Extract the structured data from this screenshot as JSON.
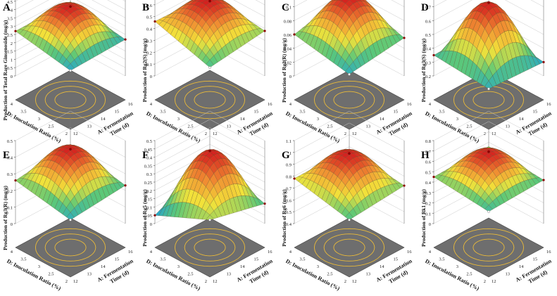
{
  "figure": {
    "background": "#ffffff"
  },
  "axis_text": {
    "d_axis": "D: Inoculation Ratio (%)",
    "a_axis_line1": "A: Fermentation",
    "a_axis_line2": "Time (d)",
    "d_ticks": [
      "2",
      "2.5",
      "3",
      "3.5",
      "4"
    ],
    "a_ticks": [
      "12",
      "13",
      "14",
      "15",
      "16"
    ]
  },
  "colors": {
    "surface_low": "#1fa2d6",
    "surface_mid": "#f2e23a",
    "surface_high": "#d41f1f",
    "floor": "#6e6e6e",
    "contour": "#e8b93a",
    "point": "#8b0000"
  },
  "chart_data": [
    {
      "type": "surface",
      "panel_label": "A",
      "zlabel": "Production of Total Rare Ginsenoside (mg/g)",
      "x": {
        "label": "D: Inoculation Ratio (%)",
        "range": [
          2,
          4
        ],
        "ticks": [
          "2",
          "2.5",
          "3",
          "3.5",
          "4"
        ]
      },
      "y": {
        "label": "A: Fermentation Time (d)",
        "range": [
          12,
          16
        ],
        "ticks": [
          "12",
          "13",
          "14",
          "15",
          "16"
        ]
      },
      "zlim": [
        0,
        5
      ],
      "zticks": [
        "0",
        "0.5",
        "1",
        "1.5",
        "2",
        "2.5",
        "3",
        "3.5",
        "4",
        "4.5",
        "5"
      ],
      "peak": 4.1,
      "corners": [
        2.1,
        2.7,
        2.7,
        2.2
      ],
      "colorscale": [
        2.0,
        4.1
      ]
    },
    {
      "type": "surface",
      "panel_label": "B",
      "zlabel": "Production of Rg2(S) (mg/g)",
      "x": {
        "label": "D: Inoculation Ratio (%)",
        "range": [
          2,
          4
        ],
        "ticks": [
          "2",
          "2.5",
          "3",
          "3.5",
          "4"
        ]
      },
      "y": {
        "label": "A: Fermentation Time (d)",
        "range": [
          12,
          16
        ],
        "ticks": [
          "12",
          "13",
          "14",
          "15",
          "16"
        ]
      },
      "zlim": [
        0,
        0.7
      ],
      "zticks": [
        "0",
        "0.1",
        "0.2",
        "0.3",
        "0.4",
        "0.5",
        "0.6",
        "0.7"
      ],
      "peak": 0.62,
      "corners": [
        0.32,
        0.46,
        0.44,
        0.38
      ],
      "colorscale": [
        0.25,
        0.62
      ]
    },
    {
      "type": "surface",
      "panel_label": "C",
      "zlabel": "Production of Rg2(R) (mg/g)",
      "x": {
        "label": "D: Inoculation Ratio (%)",
        "range": [
          2,
          4
        ],
        "ticks": [
          "2",
          "2.5",
          "3",
          "3.5",
          "4"
        ]
      },
      "y": {
        "label": "A: Fermentation Time (d)",
        "range": [
          12,
          16
        ],
        "ticks": [
          "12",
          "13",
          "14",
          "15",
          "16"
        ]
      },
      "zlim": [
        0,
        0.12
      ],
      "zticks": [
        "0",
        "0.02",
        "0.04",
        "0.06",
        "0.08",
        "0.1",
        "0.12"
      ],
      "peak": 0.11,
      "corners": [
        0.045,
        0.06,
        0.08,
        0.055
      ],
      "colorscale": [
        0.04,
        0.11
      ]
    },
    {
      "type": "surface",
      "panel_label": "D",
      "zlabel": "Production of Rg3(S) (mg/g)",
      "x": {
        "label": "D: Inoculation Ratio (%)",
        "range": [
          2,
          4
        ],
        "ticks": [
          "2",
          "2.5",
          "3",
          "3.5",
          "4"
        ]
      },
      "y": {
        "label": "A: Fermentation Time (d)",
        "range": [
          12,
          16
        ],
        "ticks": [
          "12",
          "13",
          "14",
          "15",
          "16"
        ]
      },
      "zlim": [
        0.2,
        0.8
      ],
      "zticks": [
        "0.2",
        "0.3",
        "0.4",
        "0.5",
        "0.6",
        "0.7",
        "0.8"
      ],
      "peak": 0.72,
      "corners": [
        0.32,
        0.35,
        0.36,
        0.3
      ],
      "colorscale": [
        0.28,
        0.72
      ]
    },
    {
      "type": "surface",
      "panel_label": "E",
      "zlabel": "Production of Rg3(R) (mg/g)",
      "x": {
        "label": "D: Inoculation Ratio (%)",
        "range": [
          2,
          4
        ],
        "ticks": [
          "2",
          "2.5",
          "3",
          "3.5",
          "4"
        ]
      },
      "y": {
        "label": "A: Fermentation Time (d)",
        "range": [
          12,
          16
        ],
        "ticks": [
          "12",
          "13",
          "14",
          "15",
          "16"
        ]
      },
      "zlim": [
        0,
        0.5
      ],
      "zticks": [
        "0",
        "0.1",
        "0.2",
        "0.3",
        "0.4",
        "0.5"
      ],
      "peak": 0.44,
      "corners": [
        0.2,
        0.26,
        0.3,
        0.23
      ],
      "colorscale": [
        0.18,
        0.44
      ]
    },
    {
      "type": "surface",
      "panel_label": "F",
      "zlabel": "Production of Rg5 (mg/g)",
      "x": {
        "label": "D: Inoculation Ratio (%)",
        "range": [
          2,
          4
        ],
        "ticks": [
          "2",
          "2.5",
          "3",
          "3.5",
          "4"
        ]
      },
      "y": {
        "label": "A: Fermentation Time (d)",
        "range": [
          12,
          16
        ],
        "ticks": [
          "12",
          "13",
          "14",
          "15",
          "16"
        ]
      },
      "zlim": [
        0,
        0.5
      ],
      "zticks": [
        "0",
        "0.05",
        "0.1",
        "0.15",
        "0.2",
        "0.25",
        "0.3",
        "0.35",
        "0.4",
        "0.45",
        "0.5"
      ],
      "peak": 0.43,
      "corners": [
        0.2,
        0.05,
        0.22,
        0.12
      ],
      "colorscale": [
        0.05,
        0.43
      ]
    },
    {
      "type": "surface",
      "panel_label": "G",
      "zlabel": "Production of Rg6 (mg/g)",
      "x": {
        "label": "D: Inoculation Ratio (%)",
        "range": [
          2,
          4
        ],
        "ticks": [
          "2",
          "2.5",
          "3",
          "3.5",
          "4"
        ]
      },
      "y": {
        "label": "A: Fermentation Time (d)",
        "range": [
          12,
          16
        ],
        "ticks": [
          "12",
          "13",
          "14",
          "15",
          "16"
        ]
      },
      "zlim": [
        0.4,
        1.1
      ],
      "zticks": [
        "0.4",
        "0.5",
        "0.6",
        "0.7",
        "0.8",
        "0.9",
        "1",
        "1.1"
      ],
      "peak": 0.98,
      "corners": [
        0.68,
        0.78,
        0.78,
        0.72
      ],
      "colorscale": [
        0.6,
        0.98
      ]
    },
    {
      "type": "surface",
      "panel_label": "H",
      "zlabel": "Production of Rk1 (mg/g)",
      "x": {
        "label": "D: Inoculation Ratio (%)",
        "range": [
          2,
          4
        ],
        "ticks": [
          "2",
          "2.5",
          "3",
          "3.5",
          "4"
        ]
      },
      "y": {
        "label": "A: Fermentation Time (d)",
        "range": [
          12,
          16
        ],
        "ticks": [
          "12",
          "13",
          "14",
          "15",
          "16"
        ]
      },
      "zlim": [
        0,
        0.8
      ],
      "zticks": [
        "0",
        "0.1",
        "0.2",
        "0.3",
        "0.4",
        "0.5",
        "0.6",
        "0.7",
        "0.8"
      ],
      "peak": 0.68,
      "corners": [
        0.4,
        0.45,
        0.46,
        0.42
      ],
      "colorscale": [
        0.35,
        0.68
      ]
    }
  ]
}
